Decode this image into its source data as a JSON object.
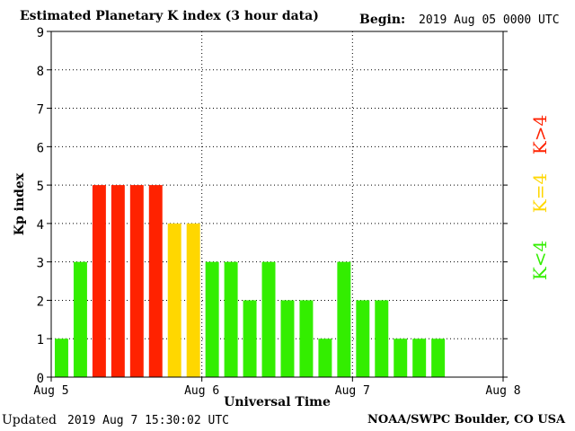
{
  "header": {
    "title": "Estimated Planetary K index (3 hour data)",
    "begin_label": "Begin:",
    "begin_value": "2019 Aug 05 0000 UTC"
  },
  "footer": {
    "updated_label": "Updated",
    "updated_value": "2019 Aug  7 15:30:02 UTC",
    "credit": "NOAA/SWPC Boulder, CO USA"
  },
  "legend": [
    {
      "label": "K>4",
      "color": "#ff2200"
    },
    {
      "label": "K=4",
      "color": "#ffd700"
    },
    {
      "label": "K<4",
      "color": "#33ee00"
    }
  ],
  "chart_data": {
    "type": "bar",
    "title": "Estimated Planetary K index (3 hour data)",
    "xlabel": "Universal Time",
    "ylabel": "Kp index",
    "ylim": [
      0,
      9
    ],
    "yticks": [
      0,
      1,
      2,
      3,
      4,
      5,
      6,
      7,
      8,
      9
    ],
    "xticks": [
      "Aug 5",
      "Aug 6",
      "Aug 7",
      "Aug 8"
    ],
    "slots": 24,
    "values": [
      1,
      3,
      5,
      5,
      5,
      5,
      4,
      4,
      3,
      3,
      2,
      3,
      2,
      2,
      1,
      3,
      2,
      2,
      1,
      1,
      1
    ],
    "colors": {
      "low": "#33ee00",
      "equal": "#ffd700",
      "high": "#ff2200"
    },
    "grid": true
  }
}
